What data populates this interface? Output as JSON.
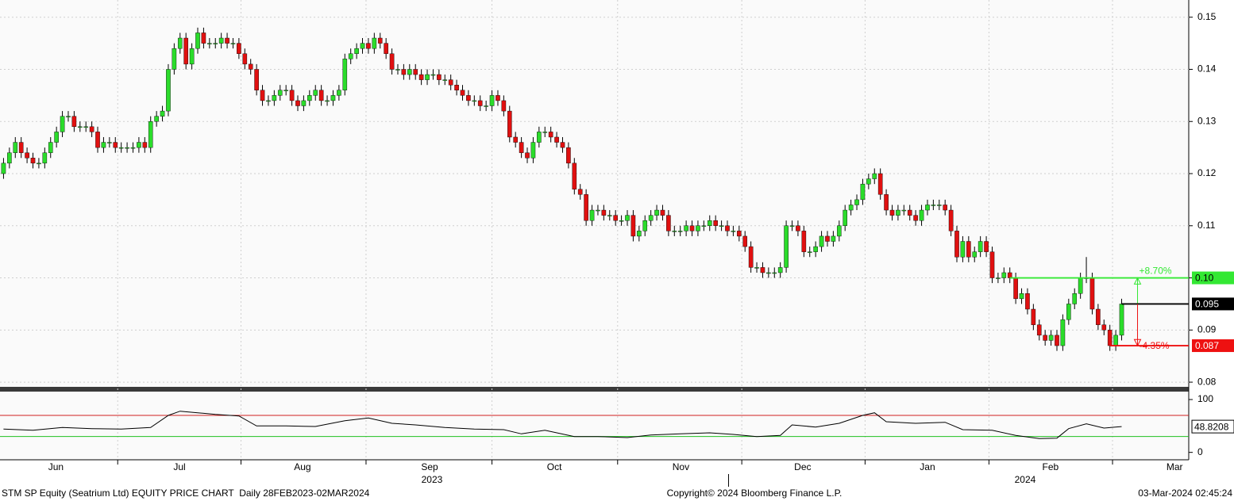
{
  "chart_data": [
    {
      "type": "candlestick",
      "xlim": [
        -0.6,
        201.4
      ],
      "xticks": [
        {
          "value": 8.9,
          "label": "Jun"
        },
        {
          "value": 29.9,
          "label": "Jul"
        },
        {
          "value": 50.8,
          "label": "Aug"
        },
        {
          "value": 72.4,
          "label": "Sep"
        },
        {
          "value": 93.6,
          "label": "Oct"
        },
        {
          "value": 115.1,
          "label": "Nov"
        },
        {
          "value": 135.8,
          "label": "Dec"
        },
        {
          "value": 157,
          "label": "Jan"
        },
        {
          "value": 177.9,
          "label": "Feb"
        },
        {
          "value": 199,
          "label": "Mar"
        }
      ],
      "year_labels": [
        {
          "value": 72.8,
          "label": "2023"
        },
        {
          "value": 173.6,
          "label": "2024"
        }
      ],
      "ylim": [
        0.0791,
        0.1533
      ],
      "yticks": [
        0.08,
        0.09,
        {
          "value": 0.1,
          "label": "0.10"
        },
        0.11,
        0.12,
        0.13,
        0.14,
        0.15
      ],
      "grid": true,
      "up_color": "#2bdc2b",
      "down_color": "#e01010",
      "open": [
        0.12,
        0.122,
        0.124,
        0.126,
        0.124,
        0.123,
        0.122,
        0.122,
        0.124,
        0.126,
        0.128,
        0.131,
        0.131,
        0.129,
        0.129,
        0.129,
        0.128,
        0.125,
        0.126,
        0.126,
        0.125,
        0.125,
        0.125,
        0.125,
        0.126,
        0.125,
        0.13,
        0.131,
        0.132,
        0.14,
        0.144,
        0.146,
        0.141,
        0.144,
        0.147,
        0.145,
        0.145,
        0.145,
        0.146,
        0.145,
        0.145,
        0.143,
        0.141,
        0.14,
        0.136,
        0.134,
        0.134,
        0.135,
        0.136,
        0.136,
        0.134,
        0.133,
        0.134,
        0.135,
        0.136,
        0.134,
        0.134,
        0.135,
        0.136,
        0.142,
        0.143,
        0.144,
        0.145,
        0.144,
        0.146,
        0.145,
        0.143,
        0.14,
        0.14,
        0.139,
        0.14,
        0.139,
        0.138,
        0.139,
        0.139,
        0.138,
        0.138,
        0.137,
        0.136,
        0.135,
        0.134,
        0.134,
        0.133,
        0.133,
        0.135,
        0.134,
        0.132,
        0.127,
        0.126,
        0.124,
        0.123,
        0.126,
        0.128,
        0.128,
        0.127,
        0.126,
        0.125,
        0.122,
        0.117,
        0.116,
        0.111,
        0.113,
        0.113,
        0.112,
        0.112,
        0.111,
        0.111,
        0.112,
        0.108,
        0.109,
        0.111,
        0.112,
        0.113,
        0.112,
        0.109,
        0.109,
        0.109,
        0.11,
        0.109,
        0.11,
        0.11,
        0.111,
        0.11,
        0.11,
        0.109,
        0.109,
        0.108,
        0.106,
        0.102,
        0.102,
        0.101,
        0.101,
        0.101,
        0.102,
        0.11,
        0.11,
        0.109,
        0.105,
        0.105,
        0.106,
        0.108,
        0.107,
        0.108,
        0.11,
        0.113,
        0.114,
        0.115,
        0.118,
        0.119,
        0.12,
        0.116,
        0.113,
        0.112,
        0.113,
        0.113,
        0.112,
        0.111,
        0.113,
        0.114,
        0.114,
        0.114,
        0.113,
        0.109,
        0.104,
        0.107,
        0.104,
        0.105,
        0.107,
        0.105,
        0.1,
        0.1,
        0.101,
        0.1,
        0.096,
        0.097,
        0.094,
        0.091,
        0.089,
        0.088,
        0.089,
        0.087,
        0.092,
        0.095,
        0.097,
        0.1,
        0.1,
        0.094,
        0.091,
        0.09,
        0.087,
        0.089
      ],
      "high": [
        0.123,
        0.125,
        0.127,
        0.127,
        0.125,
        0.124,
        0.123,
        0.125,
        0.127,
        0.129,
        0.132,
        0.132,
        0.132,
        0.13,
        0.13,
        0.13,
        0.129,
        0.127,
        0.127,
        0.127,
        0.126,
        0.126,
        0.126,
        0.127,
        0.127,
        0.131,
        0.132,
        0.133,
        0.141,
        0.145,
        0.147,
        0.147,
        0.145,
        0.148,
        0.148,
        0.146,
        0.146,
        0.147,
        0.147,
        0.146,
        0.146,
        0.144,
        0.142,
        0.141,
        0.137,
        0.135,
        0.136,
        0.137,
        0.137,
        0.137,
        0.135,
        0.135,
        0.136,
        0.137,
        0.137,
        0.135,
        0.136,
        0.137,
        0.143,
        0.144,
        0.145,
        0.146,
        0.146,
        0.147,
        0.147,
        0.146,
        0.144,
        0.141,
        0.141,
        0.141,
        0.141,
        0.14,
        0.14,
        0.14,
        0.14,
        0.139,
        0.139,
        0.138,
        0.137,
        0.136,
        0.135,
        0.135,
        0.134,
        0.136,
        0.136,
        0.135,
        0.133,
        0.128,
        0.127,
        0.125,
        0.127,
        0.129,
        0.129,
        0.129,
        0.128,
        0.127,
        0.126,
        0.123,
        0.118,
        0.117,
        0.114,
        0.114,
        0.114,
        0.113,
        0.113,
        0.112,
        0.113,
        0.113,
        0.11,
        0.112,
        0.113,
        0.114,
        0.114,
        0.113,
        0.11,
        0.11,
        0.111,
        0.111,
        0.111,
        0.111,
        0.112,
        0.112,
        0.111,
        0.111,
        0.11,
        0.11,
        0.109,
        0.107,
        0.103,
        0.103,
        0.102,
        0.102,
        0.103,
        0.111,
        0.111,
        0.111,
        0.11,
        0.106,
        0.107,
        0.109,
        0.109,
        0.109,
        0.111,
        0.114,
        0.115,
        0.116,
        0.119,
        0.12,
        0.121,
        0.121,
        0.117,
        0.114,
        0.114,
        0.114,
        0.114,
        0.113,
        0.114,
        0.115,
        0.115,
        0.115,
        0.115,
        0.114,
        0.11,
        0.108,
        0.108,
        0.106,
        0.108,
        0.108,
        0.106,
        0.101,
        0.102,
        0.102,
        0.101,
        0.098,
        0.098,
        0.095,
        0.092,
        0.09,
        0.09,
        0.09,
        0.093,
        0.096,
        0.098,
        0.101,
        0.104,
        0.101,
        0.095,
        0.092,
        0.091,
        0.09,
        0.096
      ],
      "low": [
        0.119,
        0.121,
        0.123,
        0.123,
        0.122,
        0.121,
        0.121,
        0.121,
        0.123,
        0.125,
        0.127,
        0.13,
        0.128,
        0.128,
        0.128,
        0.127,
        0.124,
        0.124,
        0.125,
        0.124,
        0.124,
        0.124,
        0.124,
        0.124,
        0.124,
        0.124,
        0.129,
        0.13,
        0.131,
        0.139,
        0.143,
        0.14,
        0.14,
        0.143,
        0.144,
        0.144,
        0.144,
        0.144,
        0.144,
        0.144,
        0.142,
        0.14,
        0.139,
        0.135,
        0.133,
        0.133,
        0.133,
        0.134,
        0.135,
        0.133,
        0.132,
        0.132,
        0.133,
        0.134,
        0.133,
        0.133,
        0.133,
        0.134,
        0.135,
        0.141,
        0.142,
        0.143,
        0.143,
        0.143,
        0.144,
        0.142,
        0.139,
        0.139,
        0.138,
        0.138,
        0.138,
        0.137,
        0.137,
        0.138,
        0.137,
        0.137,
        0.136,
        0.135,
        0.134,
        0.133,
        0.133,
        0.132,
        0.132,
        0.132,
        0.133,
        0.131,
        0.126,
        0.125,
        0.123,
        0.122,
        0.122,
        0.125,
        0.127,
        0.126,
        0.125,
        0.124,
        0.121,
        0.116,
        0.115,
        0.11,
        0.11,
        0.112,
        0.111,
        0.111,
        0.11,
        0.11,
        0.11,
        0.107,
        0.107,
        0.108,
        0.11,
        0.111,
        0.111,
        0.108,
        0.108,
        0.108,
        0.108,
        0.108,
        0.108,
        0.109,
        0.109,
        0.109,
        0.109,
        0.108,
        0.108,
        0.107,
        0.105,
        0.101,
        0.101,
        0.1,
        0.1,
        0.1,
        0.1,
        0.101,
        0.109,
        0.108,
        0.104,
        0.104,
        0.104,
        0.105,
        0.106,
        0.106,
        0.107,
        0.109,
        0.112,
        0.113,
        0.114,
        0.117,
        0.118,
        0.115,
        0.112,
        0.111,
        0.111,
        0.112,
        0.111,
        0.11,
        0.11,
        0.112,
        0.113,
        0.113,
        0.112,
        0.108,
        0.103,
        0.103,
        0.103,
        0.103,
        0.104,
        0.104,
        0.099,
        0.099,
        0.099,
        0.099,
        0.095,
        0.095,
        0.093,
        0.09,
        0.088,
        0.087,
        0.087,
        0.086,
        0.086,
        0.091,
        0.094,
        0.096,
        0.099,
        0.093,
        0.09,
        0.089,
        0.086,
        0.086,
        0.088
      ],
      "close": [
        0.122,
        0.124,
        0.126,
        0.124,
        0.123,
        0.122,
        0.122,
        0.124,
        0.126,
        0.128,
        0.131,
        0.131,
        0.129,
        0.129,
        0.129,
        0.128,
        0.125,
        0.126,
        0.126,
        0.125,
        0.125,
        0.125,
        0.125,
        0.126,
        0.125,
        0.13,
        0.131,
        0.132,
        0.14,
        0.144,
        0.146,
        0.141,
        0.144,
        0.147,
        0.145,
        0.145,
        0.145,
        0.146,
        0.145,
        0.145,
        0.143,
        0.141,
        0.14,
        0.136,
        0.134,
        0.134,
        0.135,
        0.136,
        0.136,
        0.134,
        0.133,
        0.134,
        0.135,
        0.136,
        0.134,
        0.134,
        0.135,
        0.136,
        0.142,
        0.143,
        0.144,
        0.145,
        0.144,
        0.146,
        0.145,
        0.143,
        0.14,
        0.14,
        0.139,
        0.14,
        0.139,
        0.138,
        0.139,
        0.139,
        0.138,
        0.138,
        0.137,
        0.136,
        0.135,
        0.134,
        0.134,
        0.133,
        0.133,
        0.135,
        0.134,
        0.132,
        0.127,
        0.126,
        0.124,
        0.123,
        0.126,
        0.128,
        0.128,
        0.127,
        0.126,
        0.125,
        0.122,
        0.117,
        0.116,
        0.111,
        0.113,
        0.113,
        0.112,
        0.112,
        0.111,
        0.111,
        0.112,
        0.108,
        0.109,
        0.111,
        0.112,
        0.113,
        0.112,
        0.109,
        0.109,
        0.109,
        0.11,
        0.109,
        0.11,
        0.11,
        0.111,
        0.11,
        0.11,
        0.109,
        0.109,
        0.108,
        0.106,
        0.102,
        0.102,
        0.101,
        0.101,
        0.101,
        0.102,
        0.11,
        0.11,
        0.109,
        0.105,
        0.105,
        0.106,
        0.108,
        0.107,
        0.108,
        0.11,
        0.113,
        0.114,
        0.115,
        0.118,
        0.119,
        0.12,
        0.116,
        0.113,
        0.112,
        0.113,
        0.113,
        0.112,
        0.111,
        0.113,
        0.114,
        0.114,
        0.114,
        0.113,
        0.109,
        0.104,
        0.107,
        0.104,
        0.105,
        0.107,
        0.105,
        0.1,
        0.1,
        0.101,
        0.1,
        0.096,
        0.097,
        0.094,
        0.091,
        0.089,
        0.088,
        0.089,
        0.087,
        0.092,
        0.095,
        0.097,
        0.1,
        0.1,
        0.094,
        0.091,
        0.09,
        0.087,
        0.089,
        0.095
      ],
      "price_markers": [
        {
          "value": 0.1,
          "label": "0.10",
          "color": "#33e833",
          "text_color": "#000000",
          "change": "+8.70%"
        },
        {
          "value": 0.095,
          "color": "#000000",
          "text_color": "#ffffff"
        },
        {
          "value": 0.087,
          "color": "#ee1111",
          "text_color": "#ffffff",
          "change": "-4.35%"
        }
      ]
    },
    {
      "type": "line",
      "xlim": [
        -0.6,
        201.4
      ],
      "ylim": [
        -14,
        115
      ],
      "yticks": [
        0,
        100
      ],
      "levels": [
        70,
        30
      ],
      "level_colors": [
        "#d02020",
        "#20c020"
      ],
      "x": [
        0,
        5,
        10,
        15,
        20,
        25,
        28,
        30,
        33,
        36,
        40,
        43,
        48,
        53,
        58,
        62,
        66,
        70,
        75,
        80,
        85,
        88,
        92,
        97,
        101,
        106,
        110,
        115,
        120,
        124,
        128,
        132,
        134,
        138,
        142,
        146,
        148,
        150,
        155,
        160,
        163,
        168,
        172,
        176,
        179,
        181,
        184,
        187,
        190
      ],
      "series": [
        {
          "color": "#000000",
          "values": [
            44,
            42,
            47,
            45,
            44,
            47,
            70,
            78,
            75,
            72,
            69,
            50,
            50,
            49,
            60,
            65,
            55,
            52,
            47,
            44,
            43,
            35,
            42,
            30,
            30,
            28,
            33,
            35,
            37,
            34,
            30,
            32,
            52,
            48,
            55,
            70,
            75,
            58,
            55,
            57,
            43,
            42,
            32,
            26,
            27,
            45,
            54,
            46,
            48.8208
          ]
        }
      ]
    }
  ],
  "footer": {
    "left": "STM SP Equity (Seatrium Ltd) EQUITY PRICE CHART  Daily 28FEB2023-02MAR2024",
    "center": "Copyright© 2024 Bloomberg Finance L.P.",
    "right": "03-Mar-2024 02:45:24"
  }
}
